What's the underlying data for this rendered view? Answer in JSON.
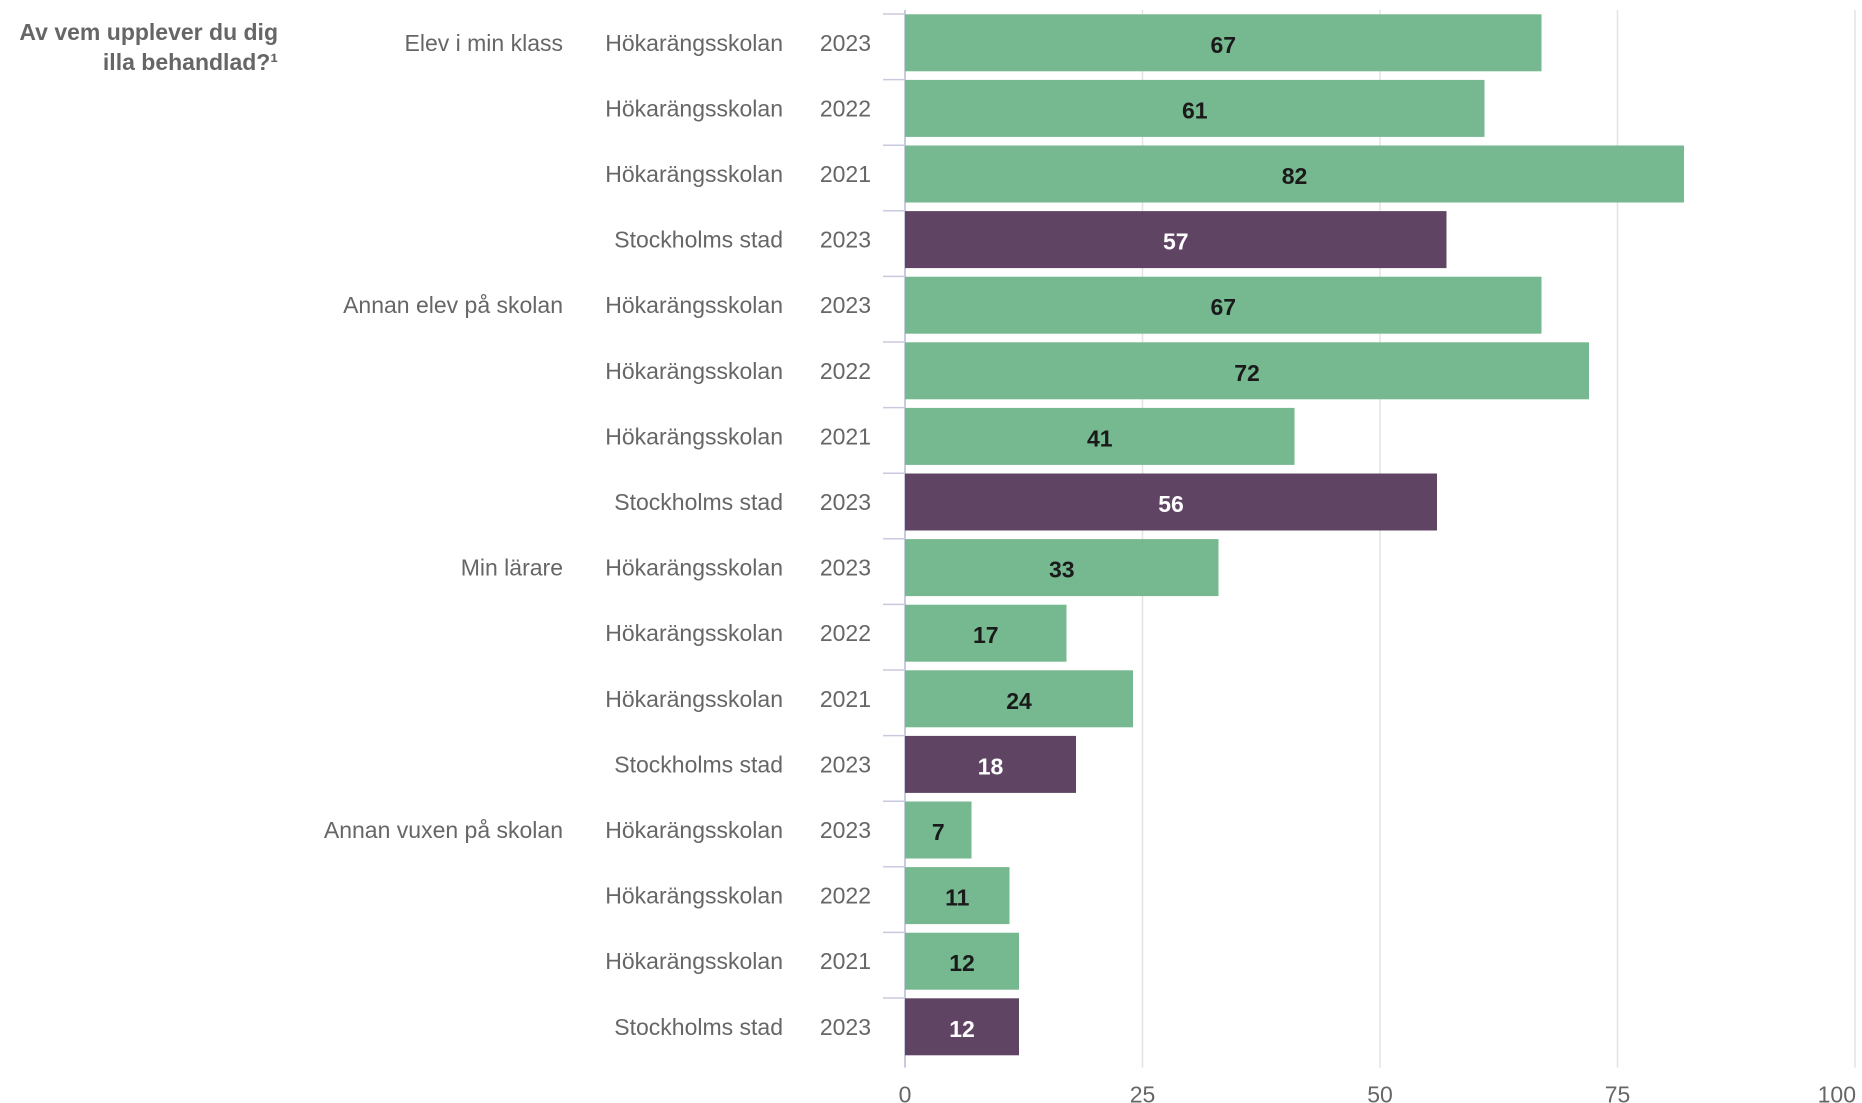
{
  "chart_data": {
    "type": "bar",
    "orientation": "horizontal",
    "title_lines": [
      "Av vem upplever du dig",
      "illa behandlad?¹"
    ],
    "xlim": [
      0,
      100
    ],
    "x_ticks": [
      "0",
      "25",
      "50",
      "75",
      "100"
    ],
    "grid": true,
    "colors": {
      "school": "#76b88f",
      "city": "#5f4563",
      "label_on_school": "#1a1a1a",
      "label_on_city": "#ffffff"
    },
    "groups": [
      {
        "name": "Elev i min klass",
        "rows": [
          {
            "unit": "Hökarängsskolan",
            "year": "2023",
            "value": 67,
            "kind": "school"
          },
          {
            "unit": "Hökarängsskolan",
            "year": "2022",
            "value": 61,
            "kind": "school"
          },
          {
            "unit": "Hökarängsskolan",
            "year": "2021",
            "value": 82,
            "kind": "school"
          },
          {
            "unit": "Stockholms stad",
            "year": "2023",
            "value": 57,
            "kind": "city"
          }
        ]
      },
      {
        "name": "Annan elev på skolan",
        "rows": [
          {
            "unit": "Hökarängsskolan",
            "year": "2023",
            "value": 67,
            "kind": "school"
          },
          {
            "unit": "Hökarängsskolan",
            "year": "2022",
            "value": 72,
            "kind": "school"
          },
          {
            "unit": "Hökarängsskolan",
            "year": "2021",
            "value": 41,
            "kind": "school"
          },
          {
            "unit": "Stockholms stad",
            "year": "2023",
            "value": 56,
            "kind": "city"
          }
        ]
      },
      {
        "name": "Min lärare",
        "rows": [
          {
            "unit": "Hökarängsskolan",
            "year": "2023",
            "value": 33,
            "kind": "school"
          },
          {
            "unit": "Hökarängsskolan",
            "year": "2022",
            "value": 17,
            "kind": "school"
          },
          {
            "unit": "Hökarängsskolan",
            "year": "2021",
            "value": 24,
            "kind": "school"
          },
          {
            "unit": "Stockholms stad",
            "year": "2023",
            "value": 18,
            "kind": "city"
          }
        ]
      },
      {
        "name": "Annan vuxen på skolan",
        "rows": [
          {
            "unit": "Hökarängsskolan",
            "year": "2023",
            "value": 7,
            "kind": "school"
          },
          {
            "unit": "Hökarängsskolan",
            "year": "2022",
            "value": 11,
            "kind": "school"
          },
          {
            "unit": "Hökarängsskolan",
            "year": "2021",
            "value": 12,
            "kind": "school"
          },
          {
            "unit": "Stockholms stad",
            "year": "2023",
            "value": 12,
            "kind": "city"
          }
        ]
      }
    ]
  }
}
